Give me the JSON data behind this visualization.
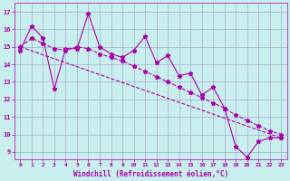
{
  "xlabel": "Windchill (Refroidissement éolien,°C)",
  "xlim": [
    -0.5,
    23.5
  ],
  "ylim": [
    8.6,
    17.5
  ],
  "yticks": [
    9,
    10,
    11,
    12,
    13,
    14,
    15,
    16,
    17
  ],
  "xticks": [
    0,
    1,
    2,
    3,
    4,
    5,
    6,
    7,
    8,
    9,
    10,
    11,
    12,
    13,
    14,
    15,
    16,
    17,
    18,
    19,
    20,
    21,
    22,
    23
  ],
  "bg_color": "#c8eeee",
  "grid_color": "#aaaacc",
  "line_color": "#aa00aa",
  "line1_x": [
    0,
    1,
    2,
    3,
    4,
    5,
    6,
    7,
    8,
    9,
    10,
    11,
    12,
    13,
    14,
    15,
    16,
    17,
    18,
    19,
    20,
    21,
    22,
    23
  ],
  "line1_y": [
    14.8,
    16.2,
    15.5,
    12.6,
    14.9,
    14.9,
    16.9,
    15.0,
    14.6,
    14.4,
    14.8,
    15.6,
    14.1,
    14.5,
    13.35,
    13.5,
    12.25,
    12.7,
    11.5,
    9.3,
    8.7,
    9.6,
    9.8,
    9.8
  ],
  "line2_x": [
    0,
    1,
    2,
    3,
    4,
    5,
    6,
    7,
    8,
    9,
    10,
    11,
    12,
    13,
    14,
    15,
    16,
    17,
    18,
    19,
    20,
    21,
    22,
    23
  ],
  "line2_y": [
    15.0,
    15.5,
    15.2,
    14.9,
    14.8,
    15.0,
    14.9,
    14.6,
    14.4,
    14.2,
    13.9,
    13.6,
    13.3,
    13.0,
    12.7,
    12.4,
    12.1,
    11.8,
    11.5,
    11.1,
    10.8,
    10.5,
    10.2,
    10.0
  ],
  "line3_x": [
    0,
    23
  ],
  "line3_y": [
    15.0,
    9.8
  ],
  "markersize": 3.5,
  "linewidth": 0.8
}
